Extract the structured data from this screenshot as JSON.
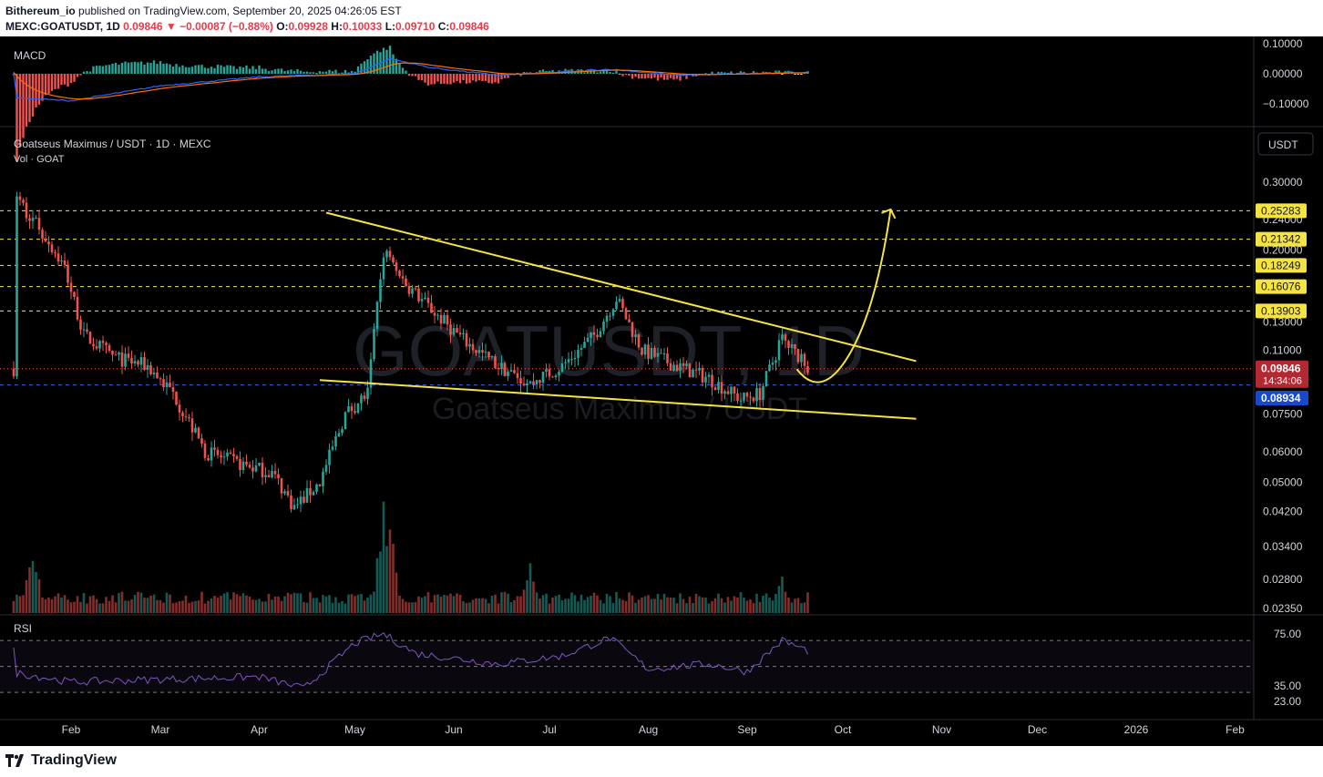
{
  "header": {
    "publisher": "Bithereum_io",
    "published_text": " published on TradingView.com, September 20, 2025 04:26:05 EST",
    "symbol": "MEXC:GOATUSDT, 1D",
    "last": "0.09846",
    "arrow": "▼",
    "change": "−0.00087 (−0.88%)",
    "o_label": "O:",
    "o": "0.09928",
    "h_label": "H:",
    "h": "0.10033",
    "l_label": "L:",
    "l": "0.09710",
    "c_label": "C:",
    "c": "0.09846"
  },
  "panes": {
    "macd_label": "MACD",
    "main_title": "Goatseus Maximus / USDT · 1D · MEXC",
    "vol_label": "Vol · GOAT",
    "rsi_label": "RSI",
    "currency_button": "USDT",
    "watermark_symbol": "GOATUSDT, 1D",
    "watermark_name": "Goatseus Maximus / USDT"
  },
  "colors": {
    "up": "#26a69a",
    "down": "#ef5350",
    "trendline": "#f5e342",
    "level_bg": "#f5e342",
    "macd_line": "#2962ff",
    "signal_line": "#ff6d00",
    "rsi_line": "#7e57c2",
    "last_price_bg": "#b22833",
    "blue_price_bg": "#1848cc"
  },
  "price_axis": {
    "ticks": [
      "0.30000",
      "0.24000",
      "0.20000",
      "0.13000",
      "0.11000",
      "0.07500",
      "0.06000",
      "0.05000",
      "0.04200",
      "0.03400",
      "0.02800",
      "0.02350"
    ],
    "levels": [
      "0.25283",
      "0.21342",
      "0.18249",
      "0.16076",
      "0.13903"
    ],
    "last_price": "0.09846",
    "countdown": "14:34:06",
    "blue_price": "0.08934"
  },
  "macd_axis": {
    "ticks": [
      "0.10000",
      "0.00000",
      "−0.10000"
    ]
  },
  "rsi_axis": {
    "ticks": [
      "75.00",
      "35.00",
      "23.00"
    ]
  },
  "time_axis": {
    "ticks": [
      "Feb",
      "Mar",
      "Apr",
      "May",
      "Jun",
      "Jul",
      "Aug",
      "Sep",
      "Oct",
      "Nov",
      "Dec",
      "2026",
      "Feb"
    ]
  },
  "footer": {
    "brand": "TradingView"
  },
  "chart_data": {
    "type": "candlestick",
    "title": "Goatseus Maximus / USDT · 1D · MEXC",
    "scale": "log",
    "currency": "USDT",
    "horizontal_levels": [
      0.25283,
      0.21342,
      0.18249,
      0.16076,
      0.13903
    ],
    "last_price": 0.09846,
    "blue_line_price": 0.08934,
    "trendlines": [
      {
        "name": "upper",
        "from": [
          "2025-04-22",
          0.25
        ],
        "to": [
          "2025-10-24",
          0.103
        ]
      },
      {
        "name": "lower",
        "from": [
          "2025-04-20",
          0.092
        ],
        "to": [
          "2025-10-24",
          0.073
        ]
      }
    ],
    "projection": {
      "from": [
        "2025-09-20",
        0.093
      ],
      "to": [
        "2025-10-16",
        0.255
      ]
    },
    "price_path": [
      [
        "2025-01-15",
        0.27
      ],
      [
        "2025-01-22",
        0.23
      ],
      [
        "2025-01-30",
        0.18
      ],
      [
        "2025-02-05",
        0.12
      ],
      [
        "2025-02-15",
        0.105
      ],
      [
        "2025-02-25",
        0.1
      ],
      [
        "2025-03-05",
        0.085
      ],
      [
        "2025-03-15",
        0.06
      ],
      [
        "2025-03-25",
        0.056
      ],
      [
        "2025-04-05",
        0.053
      ],
      [
        "2025-04-12",
        0.043
      ],
      [
        "2025-04-20",
        0.05
      ],
      [
        "2025-04-28",
        0.075
      ],
      [
        "2025-05-05",
        0.085
      ],
      [
        "2025-05-10",
        0.2
      ],
      [
        "2025-05-15",
        0.17
      ],
      [
        "2025-05-25",
        0.14
      ],
      [
        "2025-06-05",
        0.115
      ],
      [
        "2025-06-15",
        0.1
      ],
      [
        "2025-06-25",
        0.09
      ],
      [
        "2025-07-05",
        0.1
      ],
      [
        "2025-07-15",
        0.12
      ],
      [
        "2025-07-22",
        0.15
      ],
      [
        "2025-07-30",
        0.11
      ],
      [
        "2025-08-10",
        0.1
      ],
      [
        "2025-08-20",
        0.093
      ],
      [
        "2025-08-30",
        0.082
      ],
      [
        "2025-09-05",
        0.085
      ],
      [
        "2025-09-12",
        0.118
      ],
      [
        "2025-09-20",
        0.09846
      ]
    ],
    "volume_peaks": [
      [
        "2025-01-20",
        0.6
      ],
      [
        "2025-05-10",
        1.0
      ],
      [
        "2025-05-12",
        0.8
      ],
      [
        "2025-06-25",
        0.45
      ],
      [
        "2025-09-12",
        0.35
      ]
    ],
    "rsi": [
      [
        "2025-01-15",
        45
      ],
      [
        "2025-02-01",
        38
      ],
      [
        "2025-03-01",
        40
      ],
      [
        "2025-04-01",
        42
      ],
      [
        "2025-04-15",
        33
      ],
      [
        "2025-05-01",
        68
      ],
      [
        "2025-05-10",
        75
      ],
      [
        "2025-05-20",
        60
      ],
      [
        "2025-06-15",
        52
      ],
      [
        "2025-07-05",
        58
      ],
      [
        "2025-07-20",
        72
      ],
      [
        "2025-08-01",
        48
      ],
      [
        "2025-08-20",
        52
      ],
      [
        "2025-09-01",
        46
      ],
      [
        "2025-09-12",
        70
      ],
      [
        "2025-09-20",
        62
      ]
    ],
    "rsi_levels": [
      70,
      50,
      30
    ],
    "macd": [
      [
        "2025-01-15",
        -0.08
      ],
      [
        "2025-02-01",
        -0.09
      ],
      [
        "2025-03-01",
        -0.04
      ],
      [
        "2025-04-01",
        -0.01
      ],
      [
        "2025-05-01",
        0.0
      ],
      [
        "2025-05-12",
        0.05
      ],
      [
        "2025-05-25",
        0.02
      ],
      [
        "2025-06-15",
        -0.005
      ],
      [
        "2025-07-20",
        0.015
      ],
      [
        "2025-08-10",
        -0.005
      ],
      [
        "2025-09-20",
        0.005
      ]
    ]
  }
}
